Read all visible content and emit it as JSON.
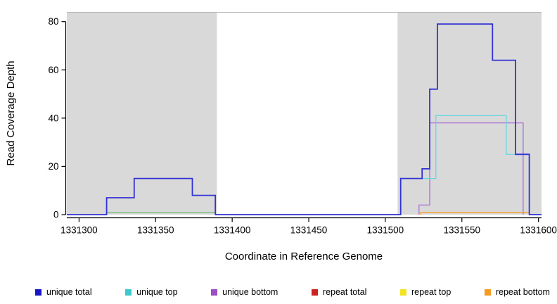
{
  "axes": {
    "xlabel": "Coordinate in Reference Genome",
    "ylabel": "Read Coverage Depth",
    "xlim": [
      1331292,
      1331602
    ],
    "ylim": [
      0,
      84
    ],
    "xticks": [
      1331300,
      1331350,
      1331400,
      1331450,
      1331500,
      1331550,
      1331600
    ],
    "yticks": [
      0,
      20,
      40,
      60,
      80
    ]
  },
  "chart_data": {
    "type": "line",
    "step": true,
    "background_color": "#ffffff",
    "shaded_region_color": "#d9d9d9",
    "top_border_color": "#b8b8b8",
    "shaded_regions": [
      {
        "x0": 1331292,
        "x1": 1331390
      },
      {
        "x0": 1331508,
        "x1": 1331602
      }
    ],
    "series": [
      {
        "name": "unlabeled green baseline",
        "color": "#5cb85c",
        "width": 1.2,
        "points": [
          [
            1331318,
            0.8
          ],
          [
            1331389,
            0.8
          ]
        ]
      },
      {
        "name": "repeat total",
        "color": "#cc2222",
        "width": 1.2,
        "points": []
      },
      {
        "name": "repeat top",
        "color": "#f2e222",
        "width": 1.2,
        "points": []
      },
      {
        "name": "unique bottom",
        "color": "#a864d4",
        "width": 1.2,
        "points": [
          [
            1331522,
            0
          ],
          [
            1331522,
            4
          ],
          [
            1331529,
            38
          ],
          [
            1331590,
            0
          ]
        ]
      },
      {
        "name": "repeat bottom",
        "color": "#f59a23",
        "width": 1.3,
        "points": [
          [
            1331523,
            0
          ],
          [
            1331523,
            0.8
          ],
          [
            1331594,
            0
          ]
        ]
      },
      {
        "name": "unique top",
        "color": "#5fd7de",
        "width": 1.2,
        "points": [
          [
            1331510,
            0
          ],
          [
            1331510,
            15
          ],
          [
            1331533,
            41
          ],
          [
            1331579,
            25
          ],
          [
            1331594,
            0
          ]
        ]
      },
      {
        "name": "unique total",
        "color": "#3232d4",
        "width": 1.8,
        "points": [
          [
            1331292,
            0
          ],
          [
            1331318,
            7
          ],
          [
            1331336,
            15
          ],
          [
            1331374,
            8
          ],
          [
            1331389,
            0
          ],
          [
            1331510,
            15
          ],
          [
            1331524,
            19
          ],
          [
            1331529,
            52
          ],
          [
            1331534,
            79
          ],
          [
            1331570,
            64
          ],
          [
            1331585,
            25
          ],
          [
            1331594,
            0
          ],
          [
            1331602,
            0
          ]
        ]
      }
    ]
  },
  "legend": {
    "items": [
      {
        "label": "unique total",
        "color": "#1616c8"
      },
      {
        "label": "unique top",
        "color": "#3cc9cf"
      },
      {
        "label": "unique bottom",
        "color": "#9a4fc4"
      },
      {
        "label": "repeat total",
        "color": "#cc2222"
      },
      {
        "label": "repeat top",
        "color": "#f2e222"
      },
      {
        "label": "repeat bottom",
        "color": "#f59a23"
      }
    ]
  }
}
